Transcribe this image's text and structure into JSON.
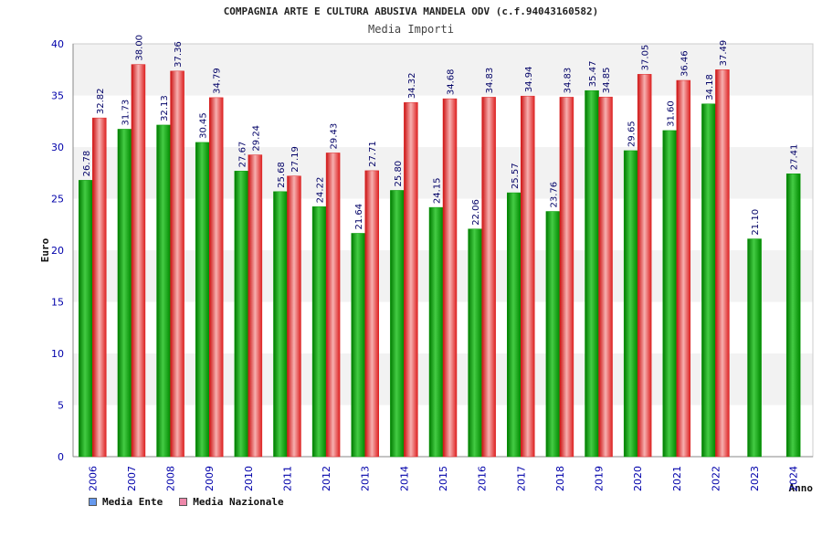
{
  "title": "COMPAGNIA ARTE E CULTURA ABUSIVA MANDELA ODV (c.f.94043160582)",
  "subtitle": "Media Importi",
  "colors": {
    "ente_dark": "#009900",
    "ente_light": "#66dd66",
    "nazionale_dark": "#dd2222",
    "nazionale_light": "#f4a0a0",
    "axis_text": "#0000aa",
    "band": "#f2f2f2"
  },
  "legend": [
    {
      "label": "Media Ente",
      "swatch_color": "#6699ee"
    },
    {
      "label": "Media Nazionale",
      "swatch_color": "#ee88aa"
    }
  ],
  "chart_data": {
    "type": "bar",
    "xlabel": "Anno",
    "ylabel": "Euro",
    "ylim": [
      0,
      40
    ],
    "yticks": [
      0,
      5,
      10,
      15,
      20,
      25,
      30,
      35,
      40
    ],
    "grid": "alternating horizontal bands",
    "legend_position": "bottom-left",
    "categories": [
      "2006",
      "2007",
      "2008",
      "2009",
      "2010",
      "2011",
      "2012",
      "2013",
      "2014",
      "2015",
      "2016",
      "2017",
      "2018",
      "2019",
      "2020",
      "2021",
      "2022",
      "2023",
      "2024"
    ],
    "series": [
      {
        "name": "Media Ente",
        "values": [
          26.78,
          31.73,
          32.13,
          30.45,
          27.67,
          25.68,
          24.22,
          21.64,
          25.8,
          24.15,
          22.06,
          25.57,
          23.76,
          35.47,
          29.65,
          31.6,
          34.18,
          21.1,
          27.41
        ]
      },
      {
        "name": "Media Nazionale",
        "values": [
          32.82,
          38.0,
          37.36,
          34.79,
          29.24,
          27.19,
          29.43,
          27.71,
          34.32,
          34.68,
          34.83,
          34.94,
          34.83,
          34.85,
          37.05,
          36.46,
          37.49,
          null,
          null
        ]
      }
    ]
  }
}
